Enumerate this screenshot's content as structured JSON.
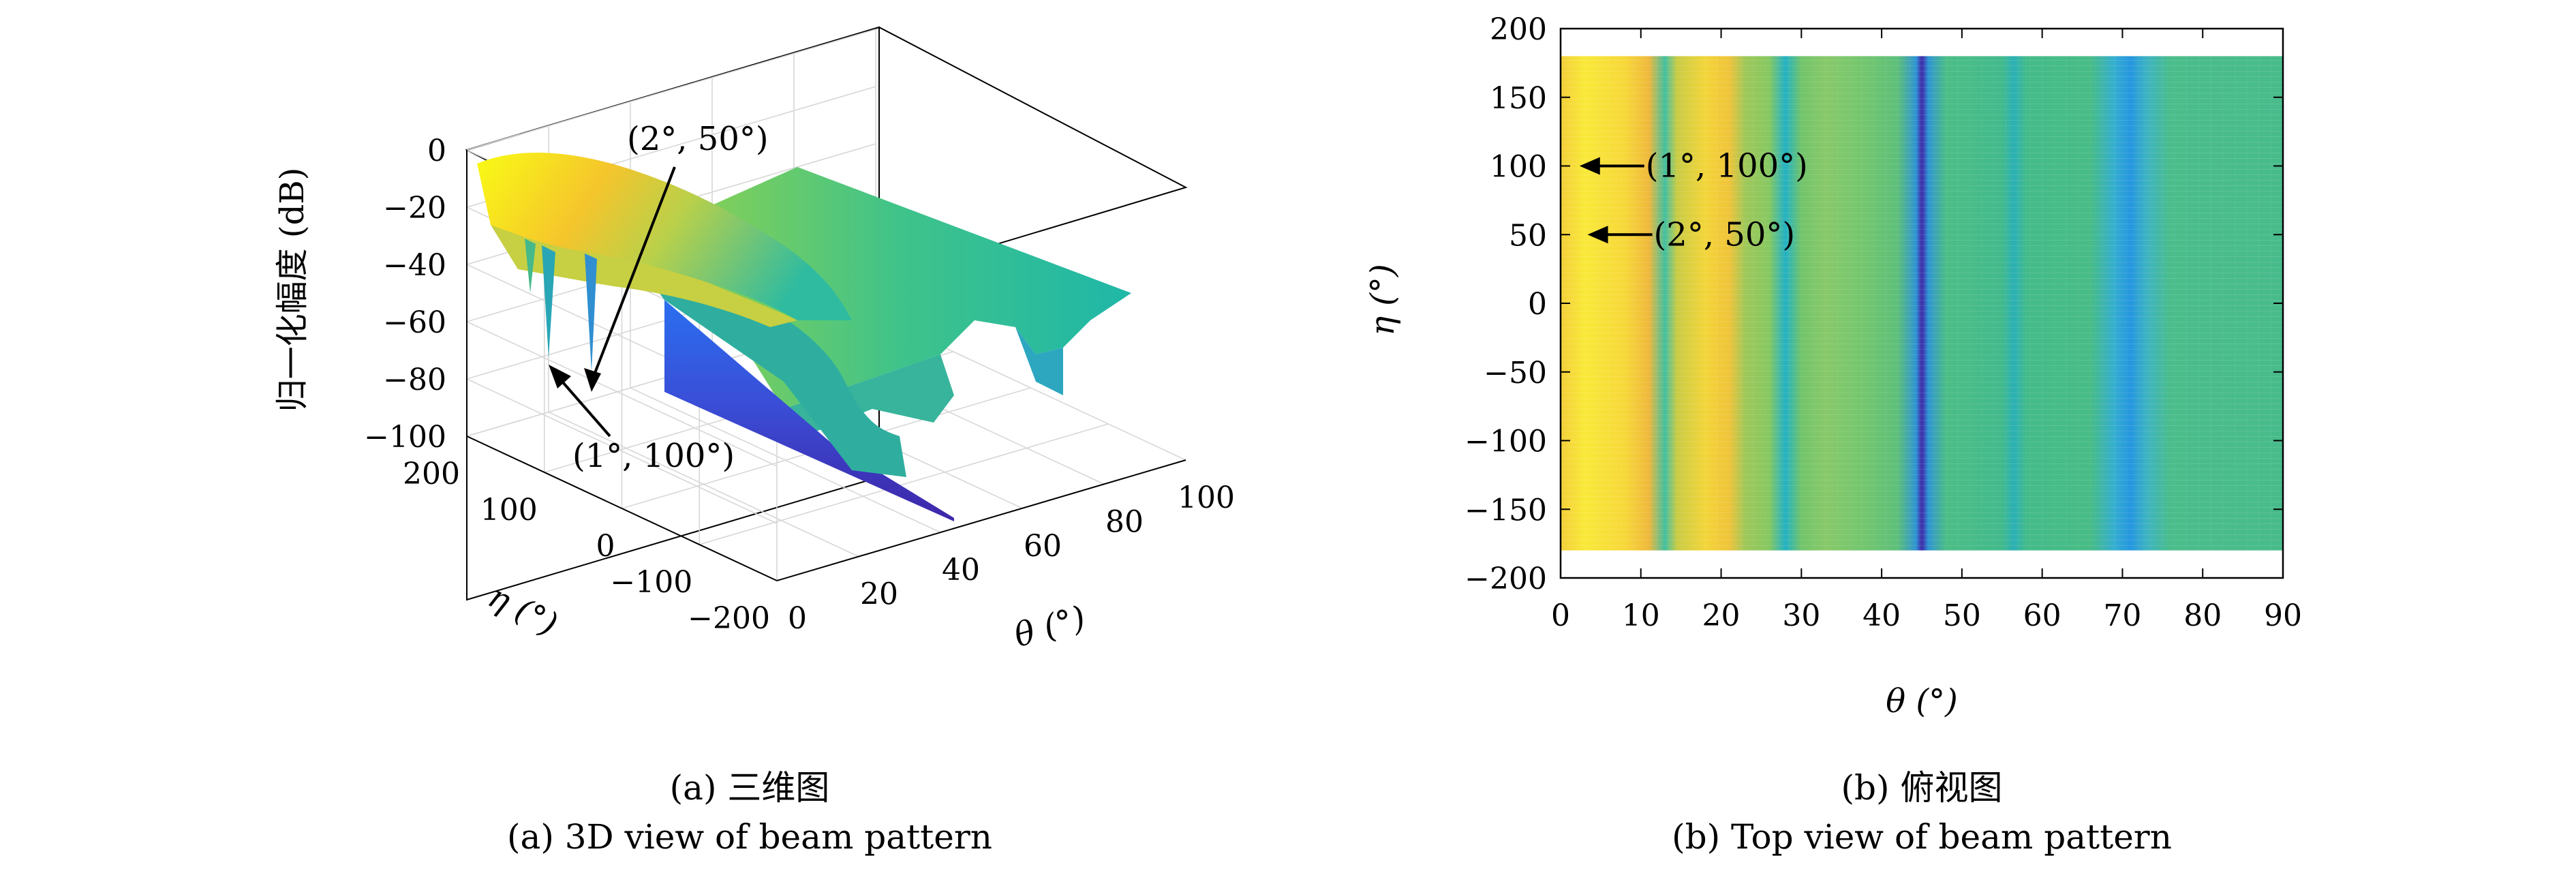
{
  "chart_data": [
    {
      "type": "surface3d",
      "panel": "a",
      "xlabel": "θ (°)",
      "ylabel": "η (°)",
      "zlabel": "归一化幅度 (dB)",
      "xlim": [
        0,
        100
      ],
      "ylim": [
        -200,
        200
      ],
      "zlim": [
        -100,
        0
      ],
      "x_ticks": [
        "0",
        "20",
        "40",
        "60",
        "80",
        "100"
      ],
      "y_ticks": [
        "200",
        "100",
        "0",
        "−100",
        "−200"
      ],
      "z_ticks": [
        "0",
        "−20",
        "−40",
        "−60",
        "−80",
        "−100"
      ],
      "grid": true,
      "colormap": [
        "#3e26a8",
        "#2c7ef7",
        "#1fb7b9",
        "#6fc85a",
        "#f5b92c",
        "#f9fb15"
      ],
      "annotations": [
        {
          "text": "(2°, 50°)",
          "theta": 2,
          "eta": 50
        },
        {
          "text": "(1°, 100°)",
          "theta": 1,
          "eta": 100
        }
      ],
      "caption_cn": "(a) 三维图",
      "caption_en": "(a) 3D view of beam pattern"
    },
    {
      "type": "heatmap",
      "panel": "b",
      "xlabel": "θ (°)",
      "ylabel": "η (°)",
      "xlim": [
        0,
        90
      ],
      "ylim": [
        -200,
        200
      ],
      "x_ticks": [
        "0",
        "10",
        "20",
        "30",
        "40",
        "50",
        "60",
        "70",
        "80",
        "90"
      ],
      "y_ticks": [
        "200",
        "150",
        "100",
        "50",
        "0",
        "−50",
        "−100",
        "−150",
        "−200"
      ],
      "data_extent": {
        "theta": [
          0,
          90
        ],
        "eta": [
          -180,
          180
        ]
      },
      "column_profile": [
        {
          "theta": 0,
          "color": "#f3cf3a"
        },
        {
          "theta": 3,
          "color": "#f9e93a"
        },
        {
          "theta": 8,
          "color": "#f7d83a"
        },
        {
          "theta": 11,
          "color": "#efb93c"
        },
        {
          "theta": 13,
          "color": "#43bfa0"
        },
        {
          "theta": 14.5,
          "color": "#c9cc46"
        },
        {
          "theta": 18,
          "color": "#f3d53a"
        },
        {
          "theta": 21,
          "color": "#f0c43a"
        },
        {
          "theta": 23,
          "color": "#9fc85a"
        },
        {
          "theta": 26,
          "color": "#86c862"
        },
        {
          "theta": 28,
          "color": "#24b2c4"
        },
        {
          "theta": 30,
          "color": "#72c46a"
        },
        {
          "theta": 33,
          "color": "#88c96a"
        },
        {
          "theta": 38,
          "color": "#72c66f"
        },
        {
          "theta": 42,
          "color": "#5dbf7a"
        },
        {
          "theta": 44.3,
          "color": "#2f94d4"
        },
        {
          "theta": 45,
          "color": "#3e26a8"
        },
        {
          "theta": 45.8,
          "color": "#2f94d4"
        },
        {
          "theta": 48,
          "color": "#4cbd86"
        },
        {
          "theta": 55,
          "color": "#43ba8c"
        },
        {
          "theta": 56.5,
          "color": "#2bb0b6"
        },
        {
          "theta": 58,
          "color": "#44bb8a"
        },
        {
          "theta": 66,
          "color": "#48bc86"
        },
        {
          "theta": 69,
          "color": "#35aed0"
        },
        {
          "theta": 71,
          "color": "#2596e0"
        },
        {
          "theta": 73,
          "color": "#3db3c2"
        },
        {
          "theta": 76,
          "color": "#4bbd8b"
        },
        {
          "theta": 90,
          "color": "#48bb8b"
        }
      ],
      "annotations": [
        {
          "text": "(1°, 100°)",
          "theta": 1,
          "eta": 100
        },
        {
          "text": "(2°, 50°)",
          "theta": 2,
          "eta": 50
        }
      ],
      "caption_cn": "(b) 俯视图",
      "caption_en": "(b) Top view of beam pattern"
    }
  ]
}
